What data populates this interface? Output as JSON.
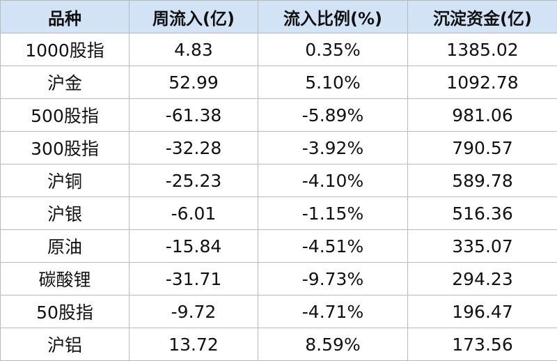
{
  "table": {
    "header": [
      "品种",
      "周流入(亿)",
      "流入比例(%)",
      "沉淀资金(亿)"
    ],
    "rows": [
      [
        "1000股指",
        "4.83",
        "0.35%",
        "1385.02"
      ],
      [
        "沪金",
        "52.99",
        "5.10%",
        "1092.78"
      ],
      [
        "500股指",
        "-61.38",
        "-5.89%",
        "981.06"
      ],
      [
        "300股指",
        "-32.28",
        "-3.92%",
        "790.57"
      ],
      [
        "沪铜",
        "-25.23",
        "-4.10%",
        "589.78"
      ],
      [
        "沪银",
        "-6.01",
        "-1.15%",
        "516.36"
      ],
      [
        "原油",
        "-15.84",
        "-4.51%",
        "335.07"
      ],
      [
        "碳酸锂",
        "-31.71",
        "-9.73%",
        "294.23"
      ],
      [
        "50股指",
        "-9.72",
        "-4.71%",
        "196.47"
      ],
      [
        "沪铝",
        "13.72",
        "8.59%",
        "173.56"
      ]
    ]
  }
}
